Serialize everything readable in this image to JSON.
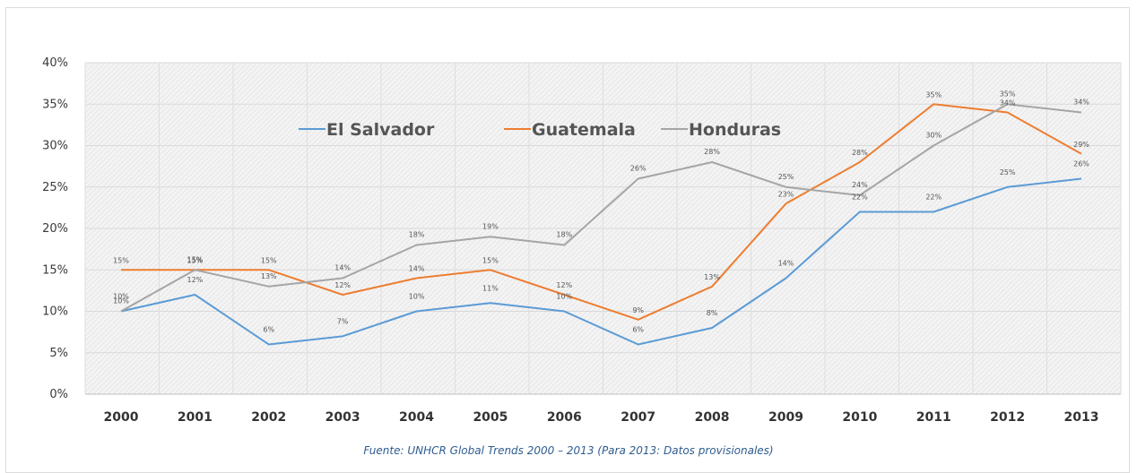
{
  "chart_data": {
    "type": "line",
    "categories": [
      "2000",
      "2001",
      "2002",
      "2003",
      "2004",
      "2005",
      "2006",
      "2007",
      "2008",
      "2009",
      "2010",
      "2011",
      "2012",
      "2013"
    ],
    "y_ticks": [
      "0%",
      "5%",
      "10%",
      "15%",
      "20%",
      "25%",
      "30%",
      "35%",
      "40%"
    ],
    "ylim": [
      0,
      40
    ],
    "grid": true,
    "legend_position": "top-center",
    "series": [
      {
        "name": "El Salvador",
        "color": "#5b9bd5",
        "values": [
          10,
          12,
          6,
          7,
          10,
          11,
          10,
          6,
          8,
          14,
          22,
          22,
          25,
          26
        ],
        "labels": [
          "10%",
          "12%",
          "6%",
          "7%",
          "10%",
          "11%",
          "10%",
          "6%",
          "8%",
          "14%",
          "22%",
          "22%",
          "25%",
          "26%"
        ]
      },
      {
        "name": "Guatemala",
        "color": "#ed7d31",
        "values": [
          15,
          15,
          15,
          12,
          14,
          15,
          12,
          9,
          13,
          23,
          28,
          35,
          34,
          29
        ],
        "labels": [
          "15%",
          "15%",
          "15%",
          "12%",
          "14%",
          "15%",
          "12%",
          "9%",
          "13%",
          "23%",
          "28%",
          "35%",
          "34%",
          "29%"
        ]
      },
      {
        "name": "Honduras",
        "color": "#a5a5a5",
        "values": [
          10,
          15,
          13,
          14,
          18,
          19,
          18,
          26,
          28,
          25,
          24,
          30,
          35,
          34
        ],
        "labels": [
          "10%",
          "15%",
          "13%",
          "14%",
          "18%",
          "19%",
          "18%",
          "26%",
          "28%",
          "25%",
          "24%",
          "30%",
          "35%",
          "34%"
        ]
      }
    ],
    "source": "Fuente: UNHCR Global Trends 2000 – 2013 (Para 2013: Datos provisionales)"
  }
}
